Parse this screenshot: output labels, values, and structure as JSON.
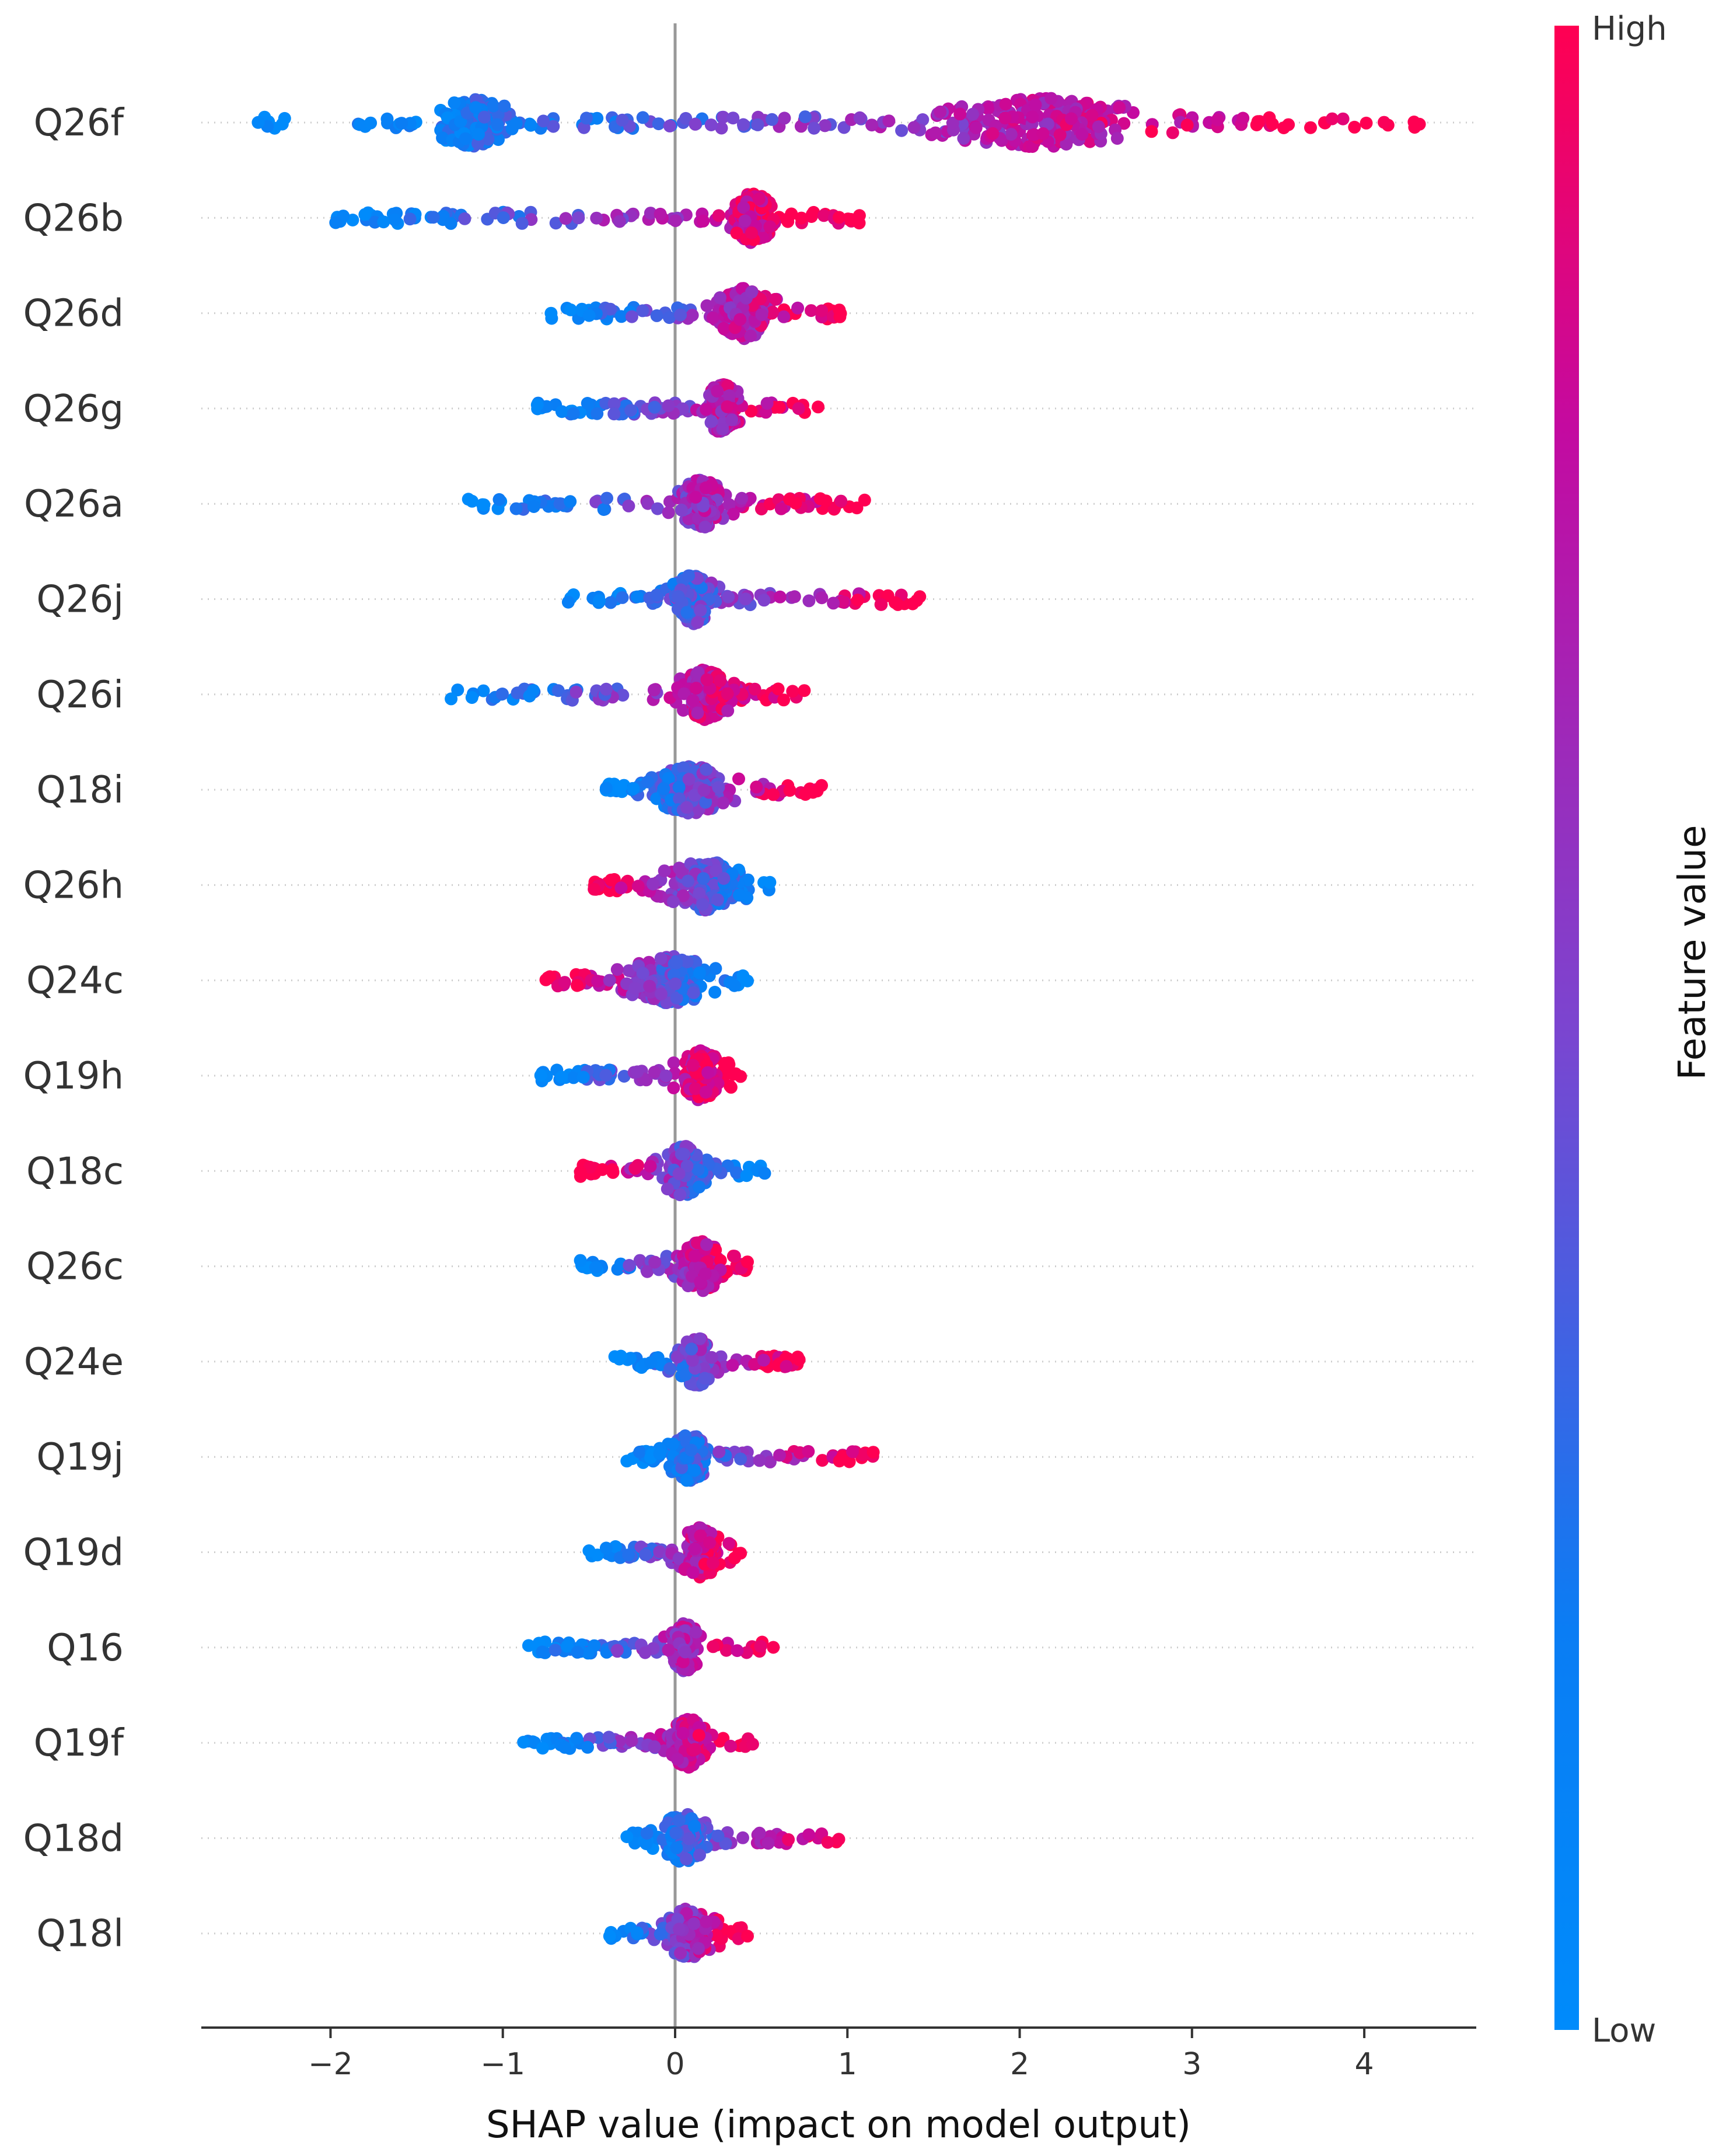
{
  "chart_data": {
    "type": "scatter",
    "subtype": "shap-beeswarm-summary",
    "xlabel": "SHAP value (impact on model output)",
    "xlim": [
      -2.75,
      4.65
    ],
    "xticks": [
      {
        "value": -2,
        "label": "−2"
      },
      {
        "value": -1,
        "label": "−1"
      },
      {
        "value": 0,
        "label": "0"
      },
      {
        "value": 1,
        "label": "1"
      },
      {
        "value": 2,
        "label": "2"
      },
      {
        "value": 3,
        "label": "3"
      },
      {
        "value": 4,
        "label": "4"
      }
    ],
    "colorbar": {
      "label": "Feature value",
      "high_label": "High",
      "low_label": "Low",
      "low_color": "#008bfb",
      "high_color": "#ff0052"
    },
    "features": [
      {
        "name": "Q26f",
        "shap_min": -2.42,
        "shap_max": 4.32,
        "dense_ranges": [
          [
            -1.45,
            -0.9
          ],
          [
            1.3,
            2.9
          ]
        ],
        "color_trend": "positive"
      },
      {
        "name": "Q26b",
        "shap_min": -1.97,
        "shap_max": 1.07,
        "dense_ranges": [
          [
            0.3,
            0.6
          ]
        ],
        "color_trend": "positive"
      },
      {
        "name": "Q26d",
        "shap_min": -0.72,
        "shap_max": 0.96,
        "dense_ranges": [
          [
            0.2,
            0.6
          ]
        ],
        "color_trend": "positive"
      },
      {
        "name": "Q26g",
        "shap_min": -0.8,
        "shap_max": 0.83,
        "dense_ranges": [
          [
            0.15,
            0.4
          ]
        ],
        "color_trend": "positive"
      },
      {
        "name": "Q26a",
        "shap_min": -1.2,
        "shap_max": 1.1,
        "dense_ranges": [
          [
            0.0,
            0.3
          ]
        ],
        "color_trend": "positive"
      },
      {
        "name": "Q26j",
        "shap_min": -0.62,
        "shap_max": 1.42,
        "dense_ranges": [
          [
            -0.05,
            0.25
          ]
        ],
        "color_trend": "positive"
      },
      {
        "name": "Q26i",
        "shap_min": -1.3,
        "shap_max": 0.75,
        "dense_ranges": [
          [
            0.0,
            0.35
          ]
        ],
        "color_trend": "positive"
      },
      {
        "name": "Q18i",
        "shap_min": -0.4,
        "shap_max": 0.85,
        "dense_ranges": [
          [
            -0.15,
            0.35
          ]
        ],
        "color_trend": "positive"
      },
      {
        "name": "Q26h",
        "shap_min": -0.47,
        "shap_max": 0.55,
        "dense_ranges": [
          [
            -0.1,
            0.45
          ]
        ],
        "color_trend": "negative"
      },
      {
        "name": "Q24c",
        "shap_min": -0.75,
        "shap_max": 0.42,
        "dense_ranges": [
          [
            -0.3,
            0.25
          ]
        ],
        "color_trend": "negative"
      },
      {
        "name": "Q19h",
        "shap_min": -0.78,
        "shap_max": 0.38,
        "dense_ranges": [
          [
            0.0,
            0.3
          ]
        ],
        "color_trend": "positive"
      },
      {
        "name": "Q18c",
        "shap_min": -0.55,
        "shap_max": 0.52,
        "dense_ranges": [
          [
            -0.1,
            0.2
          ]
        ],
        "color_trend": "negative"
      },
      {
        "name": "Q26c",
        "shap_min": -0.55,
        "shap_max": 0.42,
        "dense_ranges": [
          [
            0.0,
            0.3
          ]
        ],
        "color_trend": "positive"
      },
      {
        "name": "Q24e",
        "shap_min": -0.35,
        "shap_max": 0.72,
        "dense_ranges": [
          [
            0.0,
            0.25
          ]
        ],
        "color_trend": "positive"
      },
      {
        "name": "Q19j",
        "shap_min": -0.28,
        "shap_max": 1.15,
        "dense_ranges": [
          [
            -0.05,
            0.2
          ]
        ],
        "color_trend": "positive"
      },
      {
        "name": "Q19d",
        "shap_min": -0.5,
        "shap_max": 0.38,
        "dense_ranges": [
          [
            0.0,
            0.3
          ]
        ],
        "color_trend": "positive"
      },
      {
        "name": "Q16",
        "shap_min": -0.85,
        "shap_max": 0.57,
        "dense_ranges": [
          [
            -0.05,
            0.15
          ]
        ],
        "color_trend": "positive"
      },
      {
        "name": "Q19f",
        "shap_min": -0.88,
        "shap_max": 0.45,
        "dense_ranges": [
          [
            -0.05,
            0.2
          ]
        ],
        "color_trend": "positive"
      },
      {
        "name": "Q18d",
        "shap_min": -0.28,
        "shap_max": 0.95,
        "dense_ranges": [
          [
            -0.1,
            0.2
          ]
        ],
        "color_trend": "positive"
      },
      {
        "name": "Q18l",
        "shap_min": -0.38,
        "shap_max": 0.42,
        "dense_ranges": [
          [
            -0.1,
            0.25
          ]
        ],
        "color_trend": "positive"
      }
    ]
  }
}
